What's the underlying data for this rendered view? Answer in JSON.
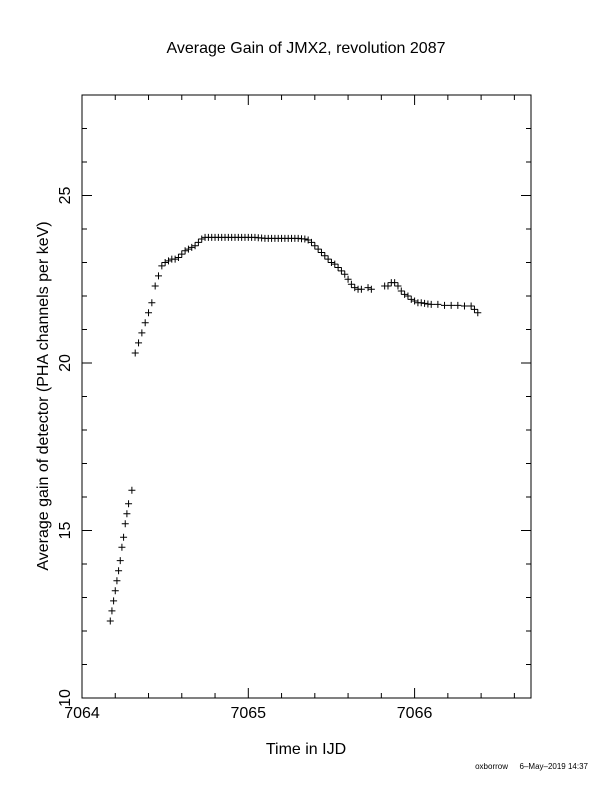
{
  "chart_data": {
    "type": "scatter",
    "title": "Average Gain of JMX2, revolution 2087",
    "xlabel": "Time in IJD",
    "ylabel": "Average gain of detector (PHA channels per keV)",
    "xlim": [
      7064,
      7066.7
    ],
    "ylim": [
      10,
      28
    ],
    "x_major_ticks": [
      7064,
      7065,
      7066
    ],
    "y_major_ticks": [
      10,
      15,
      20,
      25
    ],
    "x_tick_labels": [
      "7064",
      "7065",
      "7066"
    ],
    "y_tick_labels": [
      "10",
      "15",
      "20",
      "25"
    ],
    "marker": "plus",
    "grid": false,
    "series": [
      {
        "x": [
          7064.17,
          7064.18,
          7064.19,
          7064.2,
          7064.21,
          7064.22,
          7064.23,
          7064.24,
          7064.25,
          7064.26,
          7064.27,
          7064.28,
          7064.3,
          7064.32,
          7064.34,
          7064.36,
          7064.38,
          7064.4,
          7064.42,
          7064.44,
          7064.46,
          7064.48,
          7064.5,
          7064.52,
          7064.54,
          7064.56,
          7064.58,
          7064.6,
          7064.62,
          7064.64,
          7064.66,
          7064.68,
          7064.7,
          7064.72,
          7064.74,
          7064.76,
          7064.78,
          7064.8,
          7064.82,
          7064.84,
          7064.86,
          7064.88,
          7064.9,
          7064.92,
          7064.94,
          7064.96,
          7064.98,
          7065.0,
          7065.02,
          7065.04,
          7065.06,
          7065.08,
          7065.1,
          7065.12,
          7065.14,
          7065.16,
          7065.18,
          7065.2,
          7065.22,
          7065.24,
          7065.26,
          7065.28,
          7065.3,
          7065.32,
          7065.34,
          7065.36,
          7065.38,
          7065.4,
          7065.42,
          7065.44,
          7065.46,
          7065.48,
          7065.5,
          7065.52,
          7065.54,
          7065.56,
          7065.58,
          7065.6,
          7065.62,
          7065.64,
          7065.66,
          7065.68,
          7065.72,
          7065.74,
          7065.82,
          7065.84,
          7065.86,
          7065.88,
          7065.9,
          7065.92,
          7065.94,
          7065.96,
          7065.98,
          7066.0,
          7066.02,
          7066.04,
          7066.06,
          7066.08,
          7066.1,
          7066.14,
          7066.18,
          7066.22,
          7066.26,
          7066.3,
          7066.34,
          7066.36,
          7066.38
        ],
        "y": [
          12.3,
          12.6,
          12.9,
          13.2,
          13.5,
          13.8,
          14.1,
          14.5,
          14.8,
          15.2,
          15.5,
          15.8,
          16.2,
          20.3,
          20.6,
          20.9,
          21.2,
          21.5,
          21.8,
          22.3,
          22.6,
          22.9,
          23.0,
          23.05,
          23.1,
          23.1,
          23.15,
          23.25,
          23.35,
          23.4,
          23.45,
          23.5,
          23.6,
          23.7,
          23.75,
          23.75,
          23.75,
          23.75,
          23.75,
          23.75,
          23.75,
          23.75,
          23.75,
          23.75,
          23.75,
          23.75,
          23.75,
          23.75,
          23.75,
          23.75,
          23.74,
          23.73,
          23.72,
          23.72,
          23.72,
          23.72,
          23.72,
          23.72,
          23.72,
          23.72,
          23.72,
          23.72,
          23.72,
          23.71,
          23.7,
          23.67,
          23.6,
          23.5,
          23.4,
          23.3,
          23.2,
          23.1,
          23.0,
          22.95,
          22.85,
          22.75,
          22.65,
          22.5,
          22.35,
          22.25,
          22.2,
          22.2,
          22.25,
          22.2,
          22.3,
          22.3,
          22.4,
          22.4,
          22.3,
          22.15,
          22.05,
          22.0,
          21.9,
          21.85,
          21.8,
          21.8,
          21.78,
          21.76,
          21.75,
          21.75,
          21.72,
          21.72,
          21.72,
          21.7,
          21.7,
          21.6,
          21.5
        ]
      }
    ]
  },
  "footer": {
    "credit": "oxborrow",
    "timestamp": "6–May–2019 14:37"
  }
}
